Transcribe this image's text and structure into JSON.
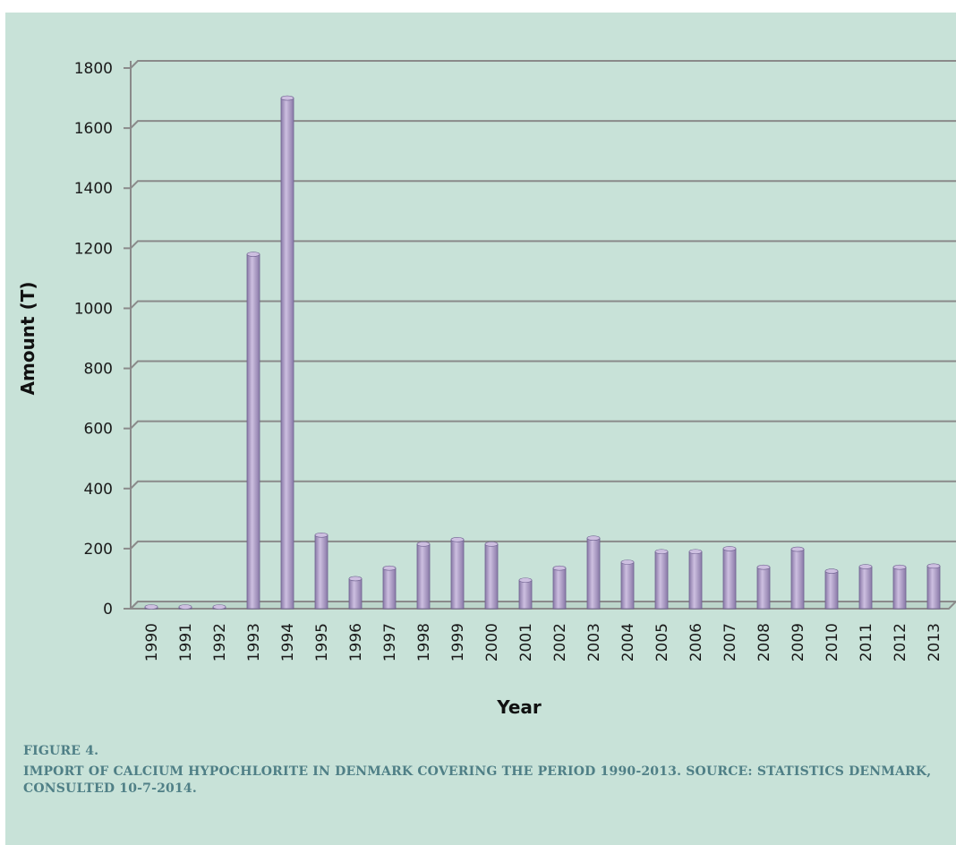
{
  "chart_data": {
    "type": "bar",
    "categories": [
      "1990",
      "1991",
      "1992",
      "1993",
      "1994",
      "1995",
      "1996",
      "1997",
      "1998",
      "1999",
      "2000",
      "2001",
      "2002",
      "2003",
      "2004",
      "2005",
      "2006",
      "2007",
      "2008",
      "2009",
      "2010",
      "2011",
      "2012",
      "2013"
    ],
    "values": [
      2,
      2,
      2,
      1180,
      1700,
      245,
      100,
      135,
      215,
      230,
      215,
      95,
      135,
      235,
      155,
      190,
      190,
      200,
      138,
      198,
      125,
      140,
      138,
      142
    ],
    "xlabel": "Year",
    "ylabel": "Amount (T)",
    "ylim": [
      0,
      1800
    ],
    "yticks": [
      0,
      200,
      400,
      600,
      800,
      1000,
      1200,
      1400,
      1600,
      1800
    ],
    "grid": true,
    "legend": "none",
    "colors": {
      "bar": "#a999c4",
      "bar_dark": "#8a7aa8",
      "bar_light": "#cdbfe0",
      "grid": "#8a8a8a",
      "background": "#c8e2d8"
    }
  },
  "caption": {
    "label": "FIGURE 4.",
    "text": "IMPORT OF CALCIUM HYPOCHLORITE IN DENMARK COVERING THE PERIOD 1990-2013. SOURCE: STATISTICS DENMARK, CONSULTED 10-7-2014."
  }
}
